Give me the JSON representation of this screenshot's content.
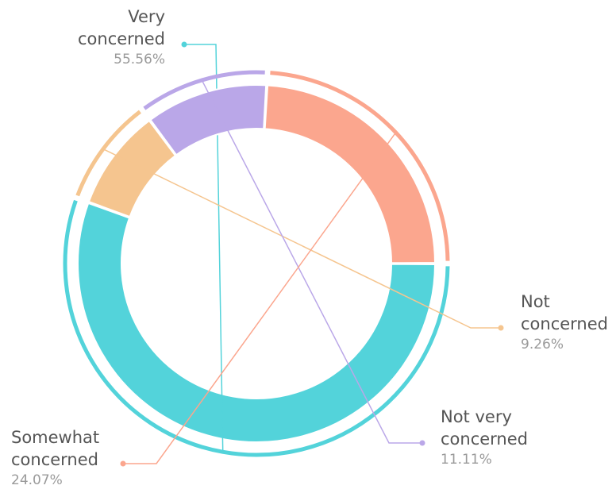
{
  "chart_data": {
    "type": "pie",
    "variant": "donut",
    "title": "",
    "slices": [
      {
        "label_lines": [
          "Very",
          "concerned"
        ],
        "value": 55.56,
        "value_text": "55.56%",
        "color": "#53d3da"
      },
      {
        "label_lines": [
          "Not",
          "concerned"
        ],
        "value": 9.26,
        "value_text": "9.26%",
        "color": "#f5c58f"
      },
      {
        "label_lines": [
          "Not very",
          "concerned"
        ],
        "value": 11.11,
        "value_text": "11.11%",
        "color": "#baa7e8"
      },
      {
        "label_lines": [
          "Somewhat",
          "concerned"
        ],
        "value": 24.07,
        "value_text": "24.07%",
        "color": "#fba68e"
      }
    ]
  }
}
